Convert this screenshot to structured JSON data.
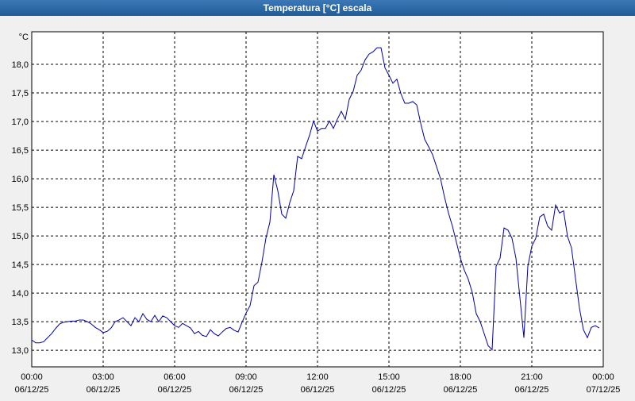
{
  "chart_data": {
    "type": "line",
    "title": "Temperatura [°C] escala",
    "y_unit": "°C",
    "x": [
      0,
      10,
      20,
      30,
      40,
      50,
      60,
      70,
      80,
      90,
      100,
      110,
      120,
      130,
      140,
      150,
      160,
      170,
      180,
      190,
      200,
      210,
      220,
      230,
      240,
      250,
      260,
      270,
      280,
      290,
      300,
      310,
      320,
      330,
      340,
      350,
      360,
      370,
      380,
      390,
      400,
      410,
      420,
      430,
      440,
      450,
      460,
      470,
      480,
      490,
      500,
      510,
      520,
      530,
      540,
      550,
      560,
      570,
      580,
      590,
      600,
      610,
      620,
      630,
      640,
      650,
      660,
      670,
      680,
      690,
      700,
      710,
      720,
      730,
      740,
      750,
      760,
      770,
      780,
      790,
      800,
      810,
      820,
      830,
      840,
      850,
      860,
      870,
      880,
      890,
      900,
      910,
      920,
      930,
      940,
      950,
      960,
      970,
      980,
      990,
      1000,
      1010,
      1020,
      1030,
      1040,
      1050,
      1060,
      1070,
      1080,
      1090,
      1100,
      1110,
      1120,
      1130,
      1140,
      1150,
      1160,
      1170,
      1180,
      1190,
      1200,
      1210,
      1220,
      1230,
      1240,
      1250,
      1260,
      1270,
      1280,
      1290,
      1300,
      1310,
      1320,
      1330,
      1340,
      1350,
      1360,
      1370,
      1380,
      1390,
      1400,
      1410,
      1420,
      1430
    ],
    "series": [
      {
        "name": "Temperatura",
        "color": "#0000a0",
        "values": [
          13.18,
          13.13,
          13.13,
          13.15,
          13.22,
          13.29,
          13.38,
          13.46,
          13.49,
          13.5,
          13.51,
          13.51,
          13.53,
          13.53,
          13.5,
          13.46,
          13.4,
          13.36,
          13.31,
          13.33,
          13.39,
          13.5,
          13.53,
          13.57,
          13.5,
          13.43,
          13.57,
          13.5,
          13.64,
          13.54,
          13.5,
          13.61,
          13.5,
          13.6,
          13.57,
          13.5,
          13.43,
          13.4,
          13.47,
          13.43,
          13.39,
          13.29,
          13.33,
          13.26,
          13.24,
          13.36,
          13.29,
          13.25,
          13.32,
          13.38,
          13.4,
          13.35,
          13.32,
          13.49,
          13.65,
          13.78,
          14.13,
          14.19,
          14.54,
          14.96,
          15.24,
          16.07,
          15.79,
          15.38,
          15.31,
          15.58,
          15.79,
          16.39,
          16.35,
          16.56,
          16.76,
          17.01,
          16.83,
          16.88,
          16.88,
          17.01,
          16.88,
          17.04,
          17.18,
          17.04,
          17.39,
          17.53,
          17.81,
          17.9,
          18.08,
          18.18,
          18.22,
          18.29,
          18.29,
          17.94,
          17.81,
          17.67,
          17.74,
          17.49,
          17.32,
          17.32,
          17.35,
          17.29,
          16.97,
          16.69,
          16.56,
          16.42,
          16.21,
          16.0,
          15.68,
          15.4,
          15.17,
          14.89,
          14.61,
          14.4,
          14.24,
          14.01,
          13.64,
          13.5,
          13.29,
          13.08,
          13.01,
          14.47,
          14.61,
          15.14,
          15.1,
          14.96,
          14.61,
          13.92,
          13.22,
          14.47,
          14.82,
          14.96,
          15.33,
          15.38,
          15.17,
          15.1,
          15.54,
          15.4,
          15.44,
          14.99,
          14.79,
          14.26,
          13.74,
          13.36,
          13.22,
          13.4,
          13.43,
          13.39
        ]
      }
    ],
    "xlim": [
      0,
      1440
    ],
    "xticks": [
      {
        "value": 0,
        "label": "00:00",
        "date": "06/12/25"
      },
      {
        "value": 180,
        "label": "03:00",
        "date": "06/12/25"
      },
      {
        "value": 360,
        "label": "06:00",
        "date": "06/12/25"
      },
      {
        "value": 540,
        "label": "09:00",
        "date": "06/12/25"
      },
      {
        "value": 720,
        "label": "12:00",
        "date": "06/12/25"
      },
      {
        "value": 900,
        "label": "15:00",
        "date": "06/12/25"
      },
      {
        "value": 1080,
        "label": "18:00",
        "date": "06/12/25"
      },
      {
        "value": 1260,
        "label": "21:00",
        "date": "06/12/25"
      },
      {
        "value": 1440,
        "label": "00:00",
        "date": "07/12/25"
      }
    ],
    "ylim": [
      12.71,
      18.57
    ],
    "yticks": [
      {
        "value": 13,
        "label": "13,0"
      },
      {
        "value": 13.5,
        "label": "13,5"
      },
      {
        "value": 14,
        "label": "14,0"
      },
      {
        "value": 14.5,
        "label": "14,5"
      },
      {
        "value": 15,
        "label": "15,0"
      },
      {
        "value": 15.5,
        "label": "15,5"
      },
      {
        "value": 16,
        "label": "16,0"
      },
      {
        "value": 16.5,
        "label": "16,5"
      },
      {
        "value": 17,
        "label": "17,0"
      },
      {
        "value": 17.5,
        "label": "17,5"
      },
      {
        "value": 18,
        "label": "18,0"
      }
    ],
    "grid": true
  }
}
